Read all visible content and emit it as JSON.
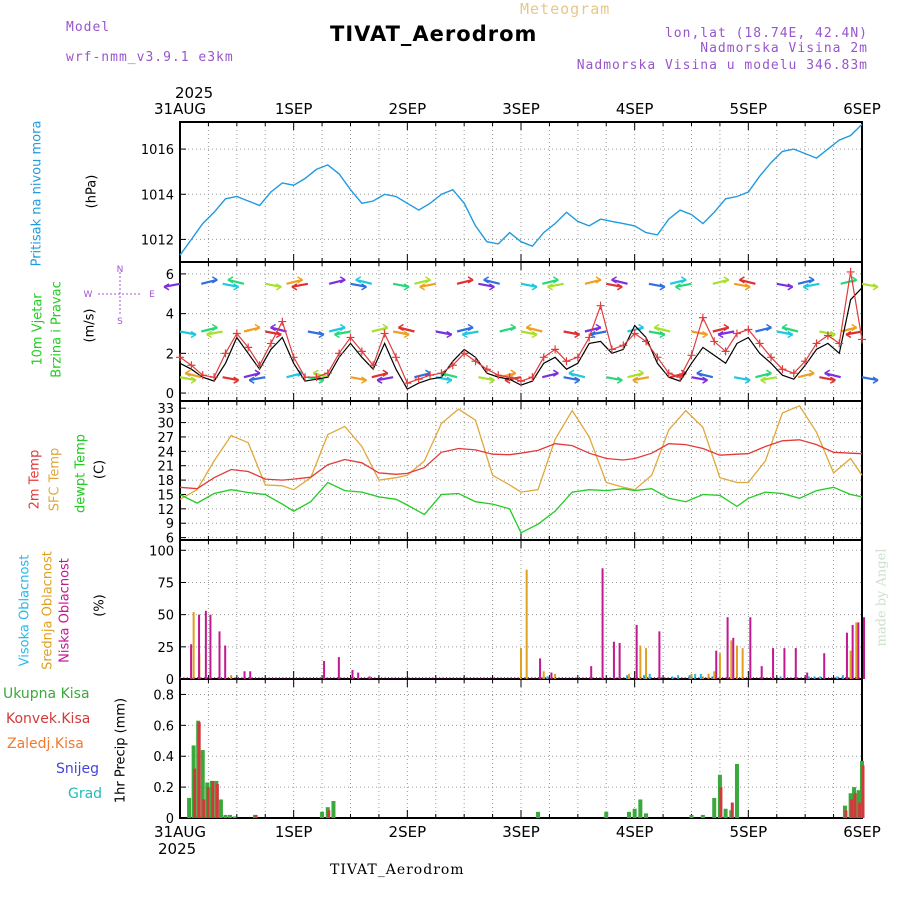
{
  "header": {
    "model_label": "Model",
    "model_name": "wrf-nmm_v3.9.1  e3km",
    "meteogram_label": "Meteogram",
    "station_title": "TIVAT_Aerodrom",
    "lonlat": "lon,lat (18.74E, 42.4N)",
    "elevation": "Nadmorska Visina 2m",
    "model_elevation": "Nadmorska Visina u modelu 346.83m",
    "footer_station": "TIVAT_Aerodrom",
    "credit": "made by Angel"
  },
  "colors": {
    "pressure": "#1f9be0",
    "wind_speed": "#000000",
    "wind_gust": "#e03c3c",
    "temp_2m": "#e23b3b",
    "sfc_temp": "#e0a83a",
    "dewpoint": "#22cc22",
    "cloud_high": "#27b8e8",
    "cloud_mid": "#e0a020",
    "cloud_low": "#c21890",
    "precip_total": "#3aa83a",
    "precip_conv": "#d03a3a",
    "label_purple": "#9955cc"
  },
  "chart_data": [
    {
      "panel": "pressure",
      "type": "line",
      "ylabel_left": "Pritisak na nivou mora",
      "unit": "(hPa)",
      "ylim": [
        1011,
        1017.2
      ],
      "yticks": [
        "1012",
        "1014",
        "1016"
      ],
      "x_range_days": [
        0,
        6
      ],
      "x_time_labels_top": [
        "31AUG",
        "1SEP",
        "2SEP",
        "3SEP",
        "4SEP",
        "5SEP",
        "6SEP"
      ],
      "top_year": "2025",
      "x": [
        0,
        0.1,
        0.2,
        0.3,
        0.4,
        0.5,
        0.6,
        0.7,
        0.8,
        0.9,
        1.0,
        1.1,
        1.2,
        1.3,
        1.4,
        1.5,
        1.6,
        1.7,
        1.8,
        1.9,
        2.0,
        2.1,
        2.2,
        2.3,
        2.4,
        2.5,
        2.6,
        2.7,
        2.8,
        2.9,
        3.0,
        3.1,
        3.2,
        3.3,
        3.4,
        3.5,
        3.6,
        3.7,
        3.8,
        3.9,
        4.0,
        4.1,
        4.2,
        4.3,
        4.4,
        4.5,
        4.6,
        4.7,
        4.8,
        4.9,
        5.0,
        5.1,
        5.2,
        5.3,
        5.4,
        5.5,
        5.6,
        5.7,
        5.8,
        5.9,
        6.0
      ],
      "values": [
        1011.3,
        1012.0,
        1012.7,
        1013.2,
        1013.8,
        1013.9,
        1013.7,
        1013.5,
        1014.1,
        1014.5,
        1014.4,
        1014.7,
        1015.1,
        1015.3,
        1014.9,
        1014.2,
        1013.6,
        1013.7,
        1014.0,
        1013.9,
        1013.6,
        1013.3,
        1013.6,
        1014.0,
        1014.2,
        1013.6,
        1012.6,
        1011.9,
        1011.8,
        1012.3,
        1011.9,
        1011.7,
        1012.3,
        1012.7,
        1013.2,
        1012.8,
        1012.6,
        1012.9,
        1012.8,
        1012.7,
        1012.6,
        1012.3,
        1012.2,
        1012.9,
        1013.3,
        1013.1,
        1012.7,
        1013.2,
        1013.8,
        1013.9,
        1014.1,
        1014.8,
        1015.4,
        1015.9,
        1016.0,
        1015.8,
        1015.6,
        1016.0,
        1016.4,
        1016.6,
        1017.1
      ]
    },
    {
      "panel": "wind",
      "type": "line",
      "ylabel_left_1": "10m Vjetar",
      "ylabel_left_2": "Brzina i Pravac",
      "unit": "(m/s)",
      "compass": [
        "N",
        "S",
        "E",
        "W"
      ],
      "ylim": [
        -0.4,
        6.6
      ],
      "yticks": [
        "0",
        "2",
        "4",
        "6"
      ],
      "series": [
        {
          "name": "wind speed",
          "x": [
            0,
            0.1,
            0.2,
            0.3,
            0.4,
            0.5,
            0.6,
            0.7,
            0.8,
            0.9,
            1.0,
            1.1,
            1.2,
            1.3,
            1.4,
            1.5,
            1.6,
            1.7,
            1.8,
            1.9,
            2.0,
            2.1,
            2.2,
            2.3,
            2.4,
            2.5,
            2.6,
            2.7,
            2.8,
            2.9,
            3.0,
            3.1,
            3.2,
            3.3,
            3.4,
            3.5,
            3.6,
            3.7,
            3.8,
            3.9,
            4.0,
            4.1,
            4.2,
            4.3,
            4.4,
            4.5,
            4.6,
            4.7,
            4.8,
            4.9,
            5.0,
            5.1,
            5.2,
            5.3,
            5.4,
            5.5,
            5.6,
            5.7,
            5.8,
            5.9,
            6.0
          ],
          "values": [
            1.5,
            1.2,
            0.8,
            0.6,
            1.5,
            2.8,
            2.0,
            1.2,
            2.2,
            2.8,
            1.5,
            0.6,
            0.7,
            0.8,
            1.8,
            2.5,
            1.8,
            1.2,
            2.5,
            1.2,
            0.2,
            0.5,
            0.7,
            0.8,
            1.6,
            2.2,
            1.8,
            1.0,
            0.8,
            0.7,
            0.4,
            0.6,
            1.5,
            1.8,
            1.2,
            1.5,
            2.5,
            2.6,
            2.0,
            2.2,
            3.4,
            2.8,
            1.5,
            0.8,
            0.6,
            1.5,
            2.3,
            1.9,
            1.5,
            2.5,
            2.8,
            2.0,
            1.5,
            0.9,
            0.7,
            1.4,
            2.2,
            2.5,
            2.0,
            4.7,
            5.3
          ]
        },
        {
          "name": "wind gust",
          "x": [
            0,
            0.1,
            0.2,
            0.3,
            0.4,
            0.5,
            0.6,
            0.7,
            0.8,
            0.9,
            1.0,
            1.1,
            1.2,
            1.3,
            1.4,
            1.5,
            1.6,
            1.7,
            1.8,
            1.9,
            2.0,
            2.1,
            2.2,
            2.3,
            2.4,
            2.5,
            2.6,
            2.7,
            2.8,
            2.9,
            3.0,
            3.1,
            3.2,
            3.3,
            3.4,
            3.5,
            3.6,
            3.7,
            3.8,
            3.9,
            4.0,
            4.1,
            4.2,
            4.3,
            4.4,
            4.5,
            4.6,
            4.7,
            4.8,
            4.9,
            5.0,
            5.1,
            5.2,
            5.3,
            5.4,
            5.5,
            5.6,
            5.7,
            5.8,
            5.9,
            6.0
          ],
          "values": [
            1.8,
            1.4,
            0.9,
            0.8,
            2.0,
            3.0,
            2.3,
            1.4,
            2.5,
            3.6,
            1.8,
            0.8,
            0.8,
            1.0,
            2.0,
            2.8,
            2.1,
            1.4,
            3.0,
            1.8,
            0.5,
            0.7,
            0.9,
            1.0,
            1.4,
            2.0,
            1.6,
            1.2,
            0.9,
            0.8,
            0.6,
            0.8,
            1.8,
            2.2,
            1.6,
            1.8,
            2.8,
            4.4,
            2.2,
            2.4,
            3.0,
            2.6,
            1.8,
            1.0,
            0.8,
            1.9,
            3.8,
            2.6,
            2.1,
            3.0,
            3.2,
            2.5,
            1.8,
            1.2,
            1.0,
            1.6,
            2.5,
            2.9,
            2.5,
            6.1,
            2.7
          ]
        }
      ],
      "arrow_rows": [
        5.5,
        3.1,
        0.8
      ],
      "arrow_count": 33
    },
    {
      "panel": "temperature",
      "type": "line",
      "ylabel_left_1": "2m Temp",
      "ylabel_left_2": "SFC Temp",
      "ylabel_left_3": "dewpt Temp",
      "unit": "(C)",
      "ylim": [
        5.5,
        34.5
      ],
      "yticks": [
        "6",
        "9",
        "12",
        "15",
        "18",
        "21",
        "24",
        "27",
        "30",
        "33"
      ],
      "series": [
        {
          "name": "2m Temp",
          "x": [
            0,
            0.15,
            0.3,
            0.45,
            0.6,
            0.75,
            0.9,
            1.0,
            1.15,
            1.3,
            1.45,
            1.6,
            1.75,
            1.9,
            2.0,
            2.15,
            2.3,
            2.45,
            2.6,
            2.75,
            2.9,
            3.0,
            3.15,
            3.3,
            3.45,
            3.6,
            3.75,
            3.9,
            4.0,
            4.15,
            4.3,
            4.45,
            4.6,
            4.75,
            4.9,
            5.0,
            5.15,
            5.3,
            5.45,
            5.6,
            5.75,
            5.9,
            6.0
          ],
          "values": [
            16.5,
            16.2,
            18.5,
            20.2,
            19.8,
            18.2,
            18.0,
            18.2,
            18.6,
            21.2,
            22.3,
            21.6,
            19.5,
            19.2,
            19.4,
            20.6,
            23.8,
            24.6,
            24.3,
            23.4,
            23.3,
            23.6,
            24.2,
            25.6,
            25.2,
            23.6,
            22.5,
            22.2,
            22.5,
            23.6,
            25.6,
            25.4,
            24.6,
            23.2,
            23.4,
            23.5,
            25.0,
            26.2,
            26.4,
            25.4,
            23.8,
            23.6,
            23.5
          ]
        },
        {
          "name": "SFC Temp",
          "x": [
            0,
            0.15,
            0.3,
            0.45,
            0.6,
            0.75,
            0.9,
            1.0,
            1.15,
            1.3,
            1.45,
            1.6,
            1.75,
            1.9,
            2.0,
            2.15,
            2.3,
            2.45,
            2.6,
            2.75,
            2.9,
            3.0,
            3.15,
            3.3,
            3.45,
            3.6,
            3.75,
            3.9,
            4.0,
            4.15,
            4.3,
            4.45,
            4.6,
            4.75,
            4.9,
            5.0,
            5.15,
            5.3,
            5.45,
            5.6,
            5.75,
            5.9,
            6.0
          ],
          "values": [
            14.0,
            16.0,
            22.0,
            27.3,
            25.8,
            17.0,
            16.8,
            16.0,
            18.5,
            27.5,
            29.2,
            25.0,
            18.0,
            18.5,
            19.0,
            22.0,
            29.8,
            32.8,
            30.5,
            19.0,
            17.0,
            15.5,
            16.0,
            26.5,
            32.5,
            27.0,
            17.5,
            16.5,
            16.0,
            19.0,
            28.5,
            32.5,
            29.0,
            18.5,
            17.5,
            17.5,
            22.0,
            32.0,
            33.5,
            28.0,
            19.5,
            22.5,
            19.0
          ]
        },
        {
          "name": "dewpt Temp",
          "x": [
            0,
            0.15,
            0.3,
            0.45,
            0.6,
            0.75,
            0.9,
            1.0,
            1.15,
            1.3,
            1.45,
            1.6,
            1.75,
            1.9,
            2.0,
            2.15,
            2.3,
            2.45,
            2.6,
            2.75,
            2.9,
            3.0,
            3.15,
            3.3,
            3.45,
            3.6,
            3.75,
            3.9,
            4.0,
            4.15,
            4.3,
            4.45,
            4.6,
            4.75,
            4.9,
            5.0,
            5.15,
            5.3,
            5.45,
            5.6,
            5.75,
            5.9,
            6.0
          ],
          "values": [
            15.0,
            13.2,
            15.2,
            16.0,
            15.4,
            15.0,
            13.0,
            11.5,
            13.5,
            17.5,
            15.8,
            15.5,
            14.5,
            14.0,
            12.8,
            10.8,
            15.0,
            15.2,
            13.5,
            13.0,
            12.0,
            7.0,
            8.8,
            11.5,
            15.5,
            16.0,
            15.8,
            16.2,
            15.8,
            16.2,
            14.2,
            13.5,
            15.0,
            14.8,
            12.5,
            14.2,
            15.5,
            15.2,
            14.2,
            15.8,
            16.5,
            15.0,
            14.5
          ]
        }
      ]
    },
    {
      "panel": "cloud",
      "type": "bar",
      "ylabel_left_1": "Visoka Oblacnost",
      "ylabel_left_2": "Srednja Oblacnost",
      "ylabel_left_3": "Niska Oblacnost",
      "unit": "(%)",
      "ylim": [
        0,
        108
      ],
      "yticks": [
        "0",
        "25",
        "50",
        "75",
        "100"
      ],
      "series": [
        {
          "name": "Visoka Oblacnost",
          "x": [
            3.25,
            3.95,
            4.1,
            4.15,
            4.35,
            4.4,
            4.5,
            4.55,
            4.6,
            4.7,
            5.3,
            5.55,
            5.6,
            5.65,
            5.8,
            5.85
          ],
          "values": [
            2,
            3,
            3,
            4,
            2,
            3,
            3,
            4,
            4,
            2,
            2,
            2,
            2,
            2,
            2,
            3
          ]
        },
        {
          "name": "Srednja Oblacnost",
          "x": [
            0.12,
            0.17,
            0.45,
            3.0,
            3.05,
            3.2,
            3.3,
            3.95,
            4.05,
            4.1,
            4.5,
            4.6,
            4.65,
            4.7,
            4.75,
            4.85,
            4.9,
            4.95,
            5.9,
            5.95
          ],
          "values": [
            52,
            20,
            3,
            24,
            85,
            6,
            4,
            4,
            26,
            24,
            4,
            2,
            4,
            6,
            20,
            30,
            26,
            24,
            22,
            44
          ]
        },
        {
          "name": "Niska Oblacnost",
          "x": [
            0.08,
            0.15,
            0.21,
            0.25,
            0.33,
            0.38,
            0.55,
            0.6,
            1.25,
            1.38,
            1.5,
            1.55,
            1.65,
            3.15,
            3.25,
            3.6,
            3.7,
            3.8,
            3.85,
            4.0,
            4.2,
            4.7,
            4.8,
            4.85,
            5.0,
            5.1,
            5.2,
            5.3,
            5.4,
            5.5,
            5.65,
            5.85,
            5.9,
            5.95,
            6.0
          ],
          "values": [
            27,
            50,
            53,
            50,
            37,
            26,
            6,
            6,
            14,
            17,
            7,
            5,
            2,
            16,
            5,
            10,
            86,
            29,
            28,
            42,
            37,
            22,
            48,
            32,
            48,
            10,
            24,
            24,
            24,
            5,
            20,
            36,
            42,
            44,
            48
          ]
        }
      ]
    },
    {
      "panel": "precip",
      "type": "bar",
      "ylabel_left": "1hr Precip (mm)",
      "legend": [
        "Ukupna Kisa",
        "Konvek.Kisa",
        "Zaledj.Kisa",
        "Snijeg",
        "Grad"
      ],
      "ylim": [
        0,
        0.9
      ],
      "yticks": [
        "0",
        "0.2",
        "0.4",
        "0.6",
        "0.8"
      ],
      "x_time_labels_bottom": [
        "31AUG",
        "1SEP",
        "2SEP",
        "3SEP",
        "4SEP",
        "5SEP",
        "6SEP"
      ],
      "bottom_year": "2025",
      "series": [
        {
          "name": "Ukupna Kisa",
          "x": [
            0.08,
            0.12,
            0.16,
            0.2,
            0.24,
            0.28,
            0.32,
            0.36,
            0.4,
            0.44,
            0.48,
            0.66,
            1.25,
            1.3,
            1.35,
            3.15,
            3.75,
            3.95,
            4.0,
            4.05,
            4.1,
            4.5,
            4.6,
            4.7,
            4.75,
            4.8,
            4.85,
            4.9,
            5.85,
            5.9,
            5.93,
            5.97,
            6.0
          ],
          "values": [
            0.13,
            0.47,
            0.63,
            0.44,
            0.23,
            0.24,
            0.24,
            0.12,
            0.02,
            0.02,
            0.01,
            0.02,
            0.04,
            0.07,
            0.11,
            0.04,
            0.04,
            0.04,
            0.06,
            0.12,
            0.03,
            0.02,
            0.02,
            0.13,
            0.28,
            0.06,
            0.05,
            0.35,
            0.08,
            0.16,
            0.2,
            0.18,
            0.37
          ]
        },
        {
          "name": "Konvek.Kisa",
          "x": [
            0.12,
            0.16,
            0.2,
            0.24,
            0.28,
            0.32,
            0.66,
            1.3,
            4.75,
            4.85,
            5.85,
            5.9,
            5.93,
            5.97,
            6.0
          ],
          "values": [
            0.32,
            0.62,
            0.12,
            0.2,
            0.24,
            0.22,
            0.02,
            0.05,
            0.2,
            0.1,
            0.05,
            0.12,
            0.16,
            0.1,
            0.34
          ]
        }
      ]
    }
  ]
}
